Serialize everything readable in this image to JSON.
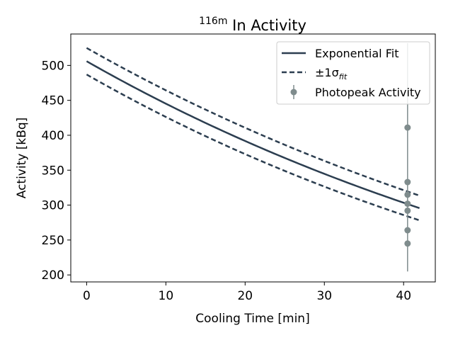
{
  "chart_data": {
    "type": "line",
    "title": {
      "superscript": "116m",
      "text": "In Activity"
    },
    "xlabel": "Cooling Time [min]",
    "ylabel": "Activity [kBq]",
    "xlim": [
      -2,
      44
    ],
    "ylim": [
      190,
      545
    ],
    "xticks": [
      0,
      10,
      20,
      30,
      40
    ],
    "yticks": [
      200,
      250,
      300,
      350,
      400,
      450,
      500
    ],
    "grid": false,
    "legend_position": "top-right",
    "colors": {
      "fit": "#2c3e50",
      "points": "#7f8c8d"
    },
    "fit": {
      "name": "Exponential Fit",
      "x_start": 0,
      "x_end": 42,
      "y0": 506,
      "half_life_min": 54.2
    },
    "sigma_upper": {
      "y0": 525,
      "half_life_min": 56.5
    },
    "sigma_lower": {
      "y0": 487,
      "half_life_min": 52.0
    },
    "sigma_legend": {
      "prefix": "±1σ",
      "subscript": "fit"
    },
    "points": {
      "name": "Photopeak Activity",
      "x": 40.5,
      "y": [
        411,
        333,
        315,
        302,
        292,
        264,
        245
      ],
      "error_low": 205,
      "error_high": 532
    }
  }
}
